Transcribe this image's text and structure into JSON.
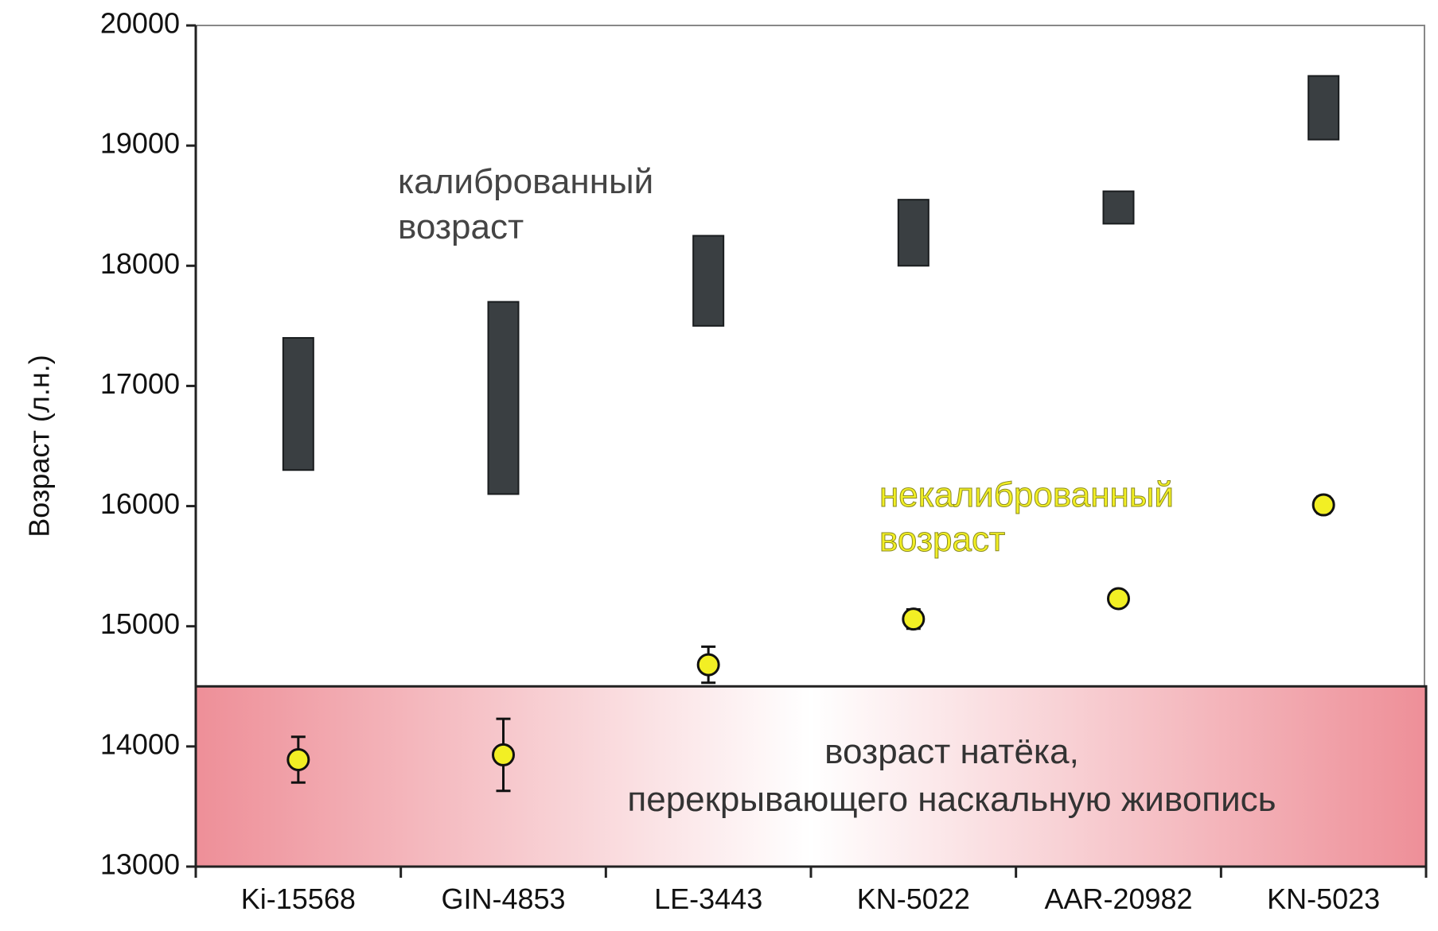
{
  "chart_data": {
    "type": "range-and-point",
    "ylabel": "Возраст (л.н.)",
    "ylim": [
      13000,
      20000
    ],
    "yticks": [
      "20000",
      "19000",
      "18000",
      "17000",
      "16000",
      "15000",
      "14000",
      "13000"
    ],
    "categories": [
      "Ki-15568",
      "GIN-4853",
      "LE-3443",
      "KN-5022",
      "AAR-20982",
      "KN-5023"
    ],
    "series": [
      {
        "name": "калиброванный возраст",
        "kind": "range",
        "color": "#3a3f42",
        "ranges": [
          [
            16300,
            17400
          ],
          [
            16100,
            17700
          ],
          [
            17500,
            18250
          ],
          [
            18000,
            18550
          ],
          [
            18350,
            18620
          ],
          [
            19050,
            19580
          ]
        ]
      },
      {
        "name": "некалиброванный возраст",
        "kind": "point",
        "color": "#f2ef24",
        "values": [
          13890,
          13930,
          14680,
          15060,
          15230,
          16010
        ],
        "errors": [
          190,
          300,
          150,
          80,
          50,
          70
        ]
      }
    ],
    "band": {
      "from": 13000,
      "to": 14500,
      "label_lines": [
        "возраст натёка,",
        "перекрывающего наскальную живопись"
      ],
      "color_edge": "#ee8f98",
      "color_center": "#ffffff"
    },
    "annotations": {
      "calibrated_lines": [
        "калиброванный",
        "возраст"
      ],
      "uncalibrated_lines": [
        "некалиброванный",
        "возраст"
      ]
    },
    "grid": false,
    "legend": "none"
  }
}
